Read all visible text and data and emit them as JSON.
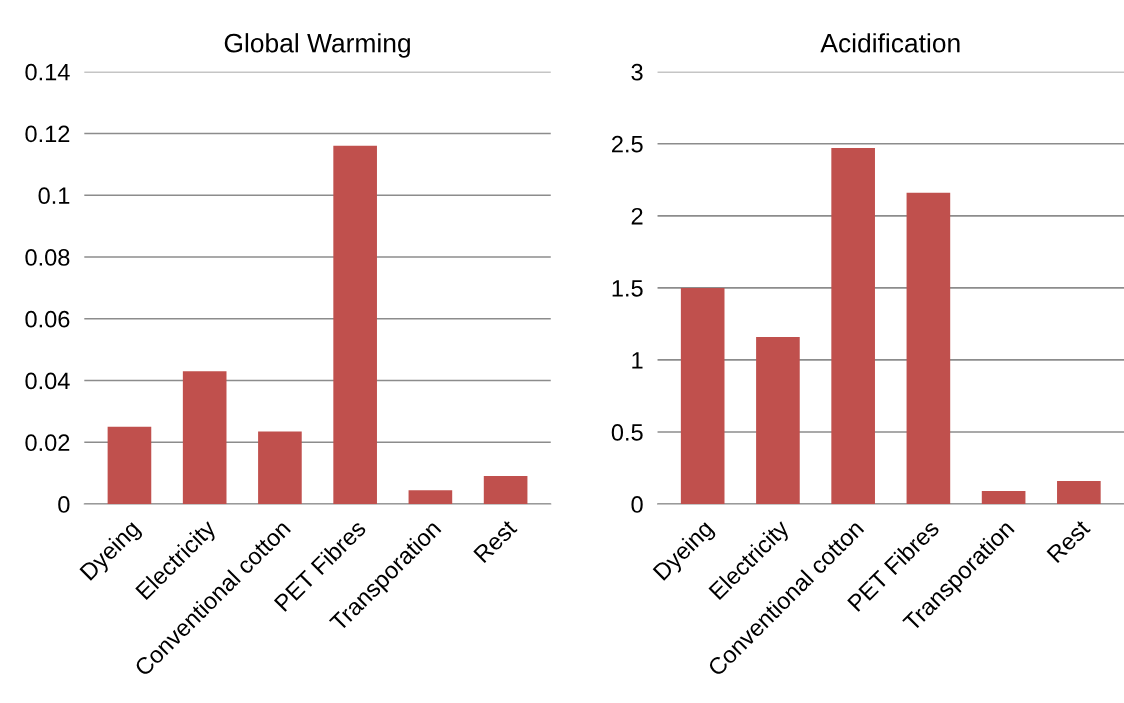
{
  "chart_data": [
    {
      "type": "bar",
      "title": "Global Warming",
      "categories": [
        "Dyeing",
        "Electricity",
        "Conventional cotton",
        "PET Fibres",
        "Transporation",
        "Rest"
      ],
      "values": [
        0.025,
        0.043,
        0.0235,
        0.116,
        0.0045,
        0.0091
      ],
      "color": "#c0504d",
      "ylim": [
        0,
        0.14
      ],
      "yticks": [
        0,
        0.02,
        0.04,
        0.06,
        0.08,
        0.1,
        0.12,
        0.14
      ],
      "grid": "y"
    },
    {
      "type": "bar",
      "title": "Acidification",
      "categories": [
        "Dyeing",
        "Electricity",
        "Conventional cotton",
        "PET Fibres",
        "Transporation",
        "Rest"
      ],
      "values": [
        1.5,
        1.16,
        2.47,
        2.16,
        0.09,
        0.16
      ],
      "color": "#c0504d",
      "ylim": [
        0,
        3
      ],
      "yticks": [
        0,
        0.5,
        1,
        1.5,
        2,
        2.5,
        3
      ],
      "grid": "y"
    }
  ]
}
